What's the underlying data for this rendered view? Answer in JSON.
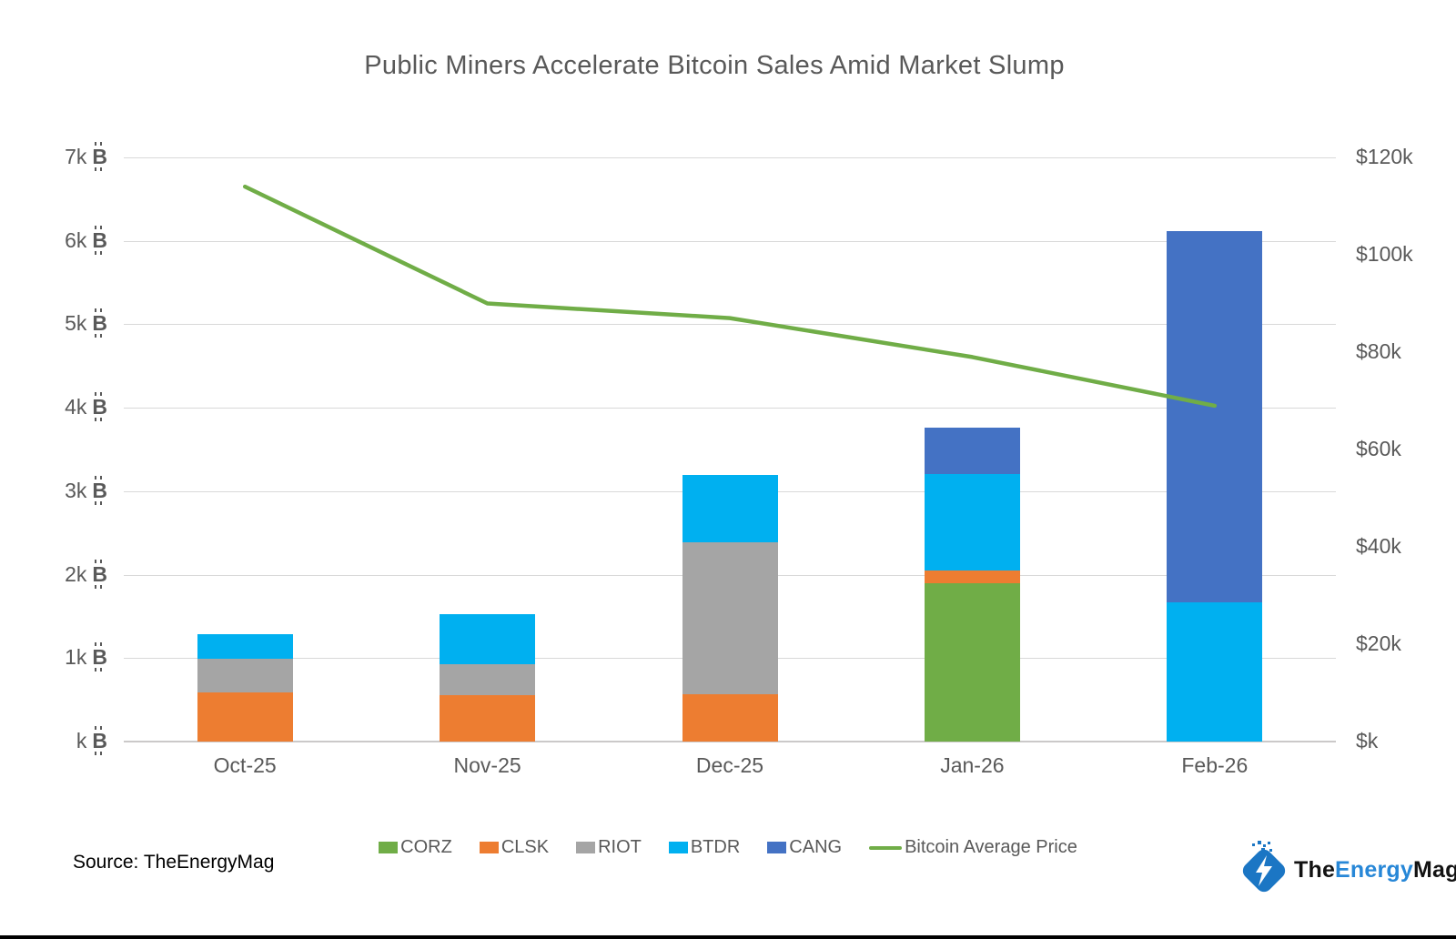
{
  "title": "Public Miners Accelerate Bitcoin Sales Amid Market Slump",
  "source": {
    "label": "Source: TheEnergyMag"
  },
  "branding": {
    "logo_icon": "lightning-bolt-diamond",
    "name_parts": {
      "the": "The",
      "energy": "Energy",
      "mag": "Mag"
    },
    "logo_blue": "#1b76c4",
    "text_blue": "#2787d7"
  },
  "colors": {
    "title_text": "#595959",
    "axis_text": "#595959",
    "gridline": "#d9d9d9",
    "corz_green": "#70AD47",
    "clsk_orange": "#ED7D31",
    "riot_gray": "#A5A5A5",
    "btdr_cyan": "#00B0F0",
    "cang_blue": "#4472C4",
    "price_line_green": "#70AD47"
  },
  "chart_data": {
    "type": "bar",
    "subtype": "stacked-bar-with-line",
    "title": "Public Miners Accelerate Bitcoin Sales Amid Market Slump",
    "categories": [
      "Oct-25",
      "Nov-25",
      "Dec-25",
      "Jan-26",
      "Feb-26"
    ],
    "series": [
      {
        "name": "CORZ",
        "type": "bar",
        "color": "#70AD47",
        "values": [
          0,
          0,
          0,
          1900,
          0
        ]
      },
      {
        "name": "CLSK",
        "type": "bar",
        "color": "#ED7D31",
        "values": [
          590,
          560,
          570,
          150,
          0
        ]
      },
      {
        "name": "RIOT",
        "type": "bar",
        "color": "#A5A5A5",
        "values": [
          400,
          370,
          1820,
          0,
          0
        ]
      },
      {
        "name": "BTDR",
        "type": "bar",
        "color": "#00B0F0",
        "values": [
          300,
          600,
          810,
          1160,
          1670
        ]
      },
      {
        "name": "CANG",
        "type": "bar",
        "color": "#4472C4",
        "values": [
          0,
          0,
          0,
          550,
          4450
        ]
      },
      {
        "name": "Bitcoin Average Price",
        "type": "line",
        "color": "#70AD47",
        "values_usd": [
          114000,
          90000,
          87000,
          79000,
          69000
        ]
      }
    ],
    "stacked_totals_btc": [
      1290,
      1530,
      3200,
      3760,
      6120
    ],
    "left_axis": {
      "unit": "₿",
      "ticks_top_down": [
        "7k ₿",
        "6k ₿",
        "5k ₿",
        "4k ₿",
        "3k ₿",
        "2k ₿",
        "1k ₿",
        "k ₿"
      ],
      "max": 7000,
      "step": 1000
    },
    "right_axis": {
      "ticks_top_down": [
        "$120k",
        "$100k",
        "$80k",
        "$60k",
        "$40k",
        "$20k",
        "$k"
      ],
      "max": 120000,
      "step": 20000
    },
    "grid": true,
    "legend_position": "bottom"
  }
}
